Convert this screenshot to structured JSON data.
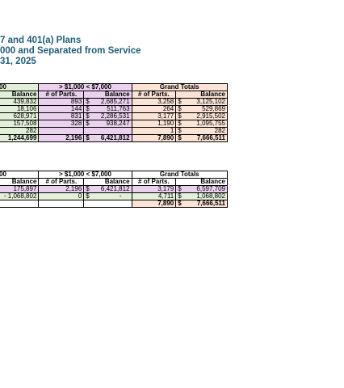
{
  "title": {
    "line1": "7 and 401(a) Plans",
    "line2": "000 and Separated from Service",
    "line3": "31, 2025"
  },
  "table1": {
    "group1": "00",
    "group2": "> $1,000 < $7,000",
    "group3": "Grand Totals",
    "h_balance": "Balance",
    "h_parts": "# of Parts.",
    "rows": [
      {
        "bal1": "439,832",
        "p2": "893",
        "d2": "$",
        "b2": "2,685,271",
        "p3": "3,258",
        "d3": "$",
        "b3": "3,125,102"
      },
      {
        "bal1": "18,106",
        "p2": "144",
        "d2": "$",
        "b2": "511,763",
        "p3": "264",
        "d3": "$",
        "b3": "529,869"
      },
      {
        "bal1": "628,971",
        "p2": "831",
        "d2": "$",
        "b2": "2,286,531",
        "p3": "3,177",
        "d3": "$",
        "b3": "2,915,502"
      },
      {
        "bal1": "157,508",
        "p2": "328",
        "d2": "$",
        "b2": "938,247",
        "p3": "1,190",
        "d3": "$",
        "b3": "1,095,755"
      },
      {
        "bal1": "282",
        "p2": "",
        "d2": "",
        "b2": "",
        "p3": "1",
        "d3": "$",
        "b3": "282"
      }
    ],
    "total": {
      "bal1": "1,244,699",
      "p2": "2,196",
      "d2": "$",
      "b2": "6,421,812",
      "p3": "7,890",
      "d3": "$",
      "b3": "7,666,511"
    }
  },
  "table2": {
    "group1": "00",
    "group2": "> $1,000 < $7,000",
    "group3": "Grand Totals",
    "h_balance": "Balance",
    "h_parts": "# of Parts.",
    "rows": [
      {
        "bal1": "175,897",
        "p2": "2,196",
        "d2": "$",
        "b2": "6,421,812",
        "p3": "3,179",
        "d3": "$",
        "b3": "6,597,709"
      },
      {
        "bal1": "- 1,068,802",
        "p2": "0",
        "d2": "$",
        "b2": "-",
        "p3": "4,711",
        "d3": "$",
        "b3": "1,068,802"
      }
    ],
    "total": {
      "p3": "7,890",
      "d3": "$",
      "b3": "7,666,511"
    }
  }
}
